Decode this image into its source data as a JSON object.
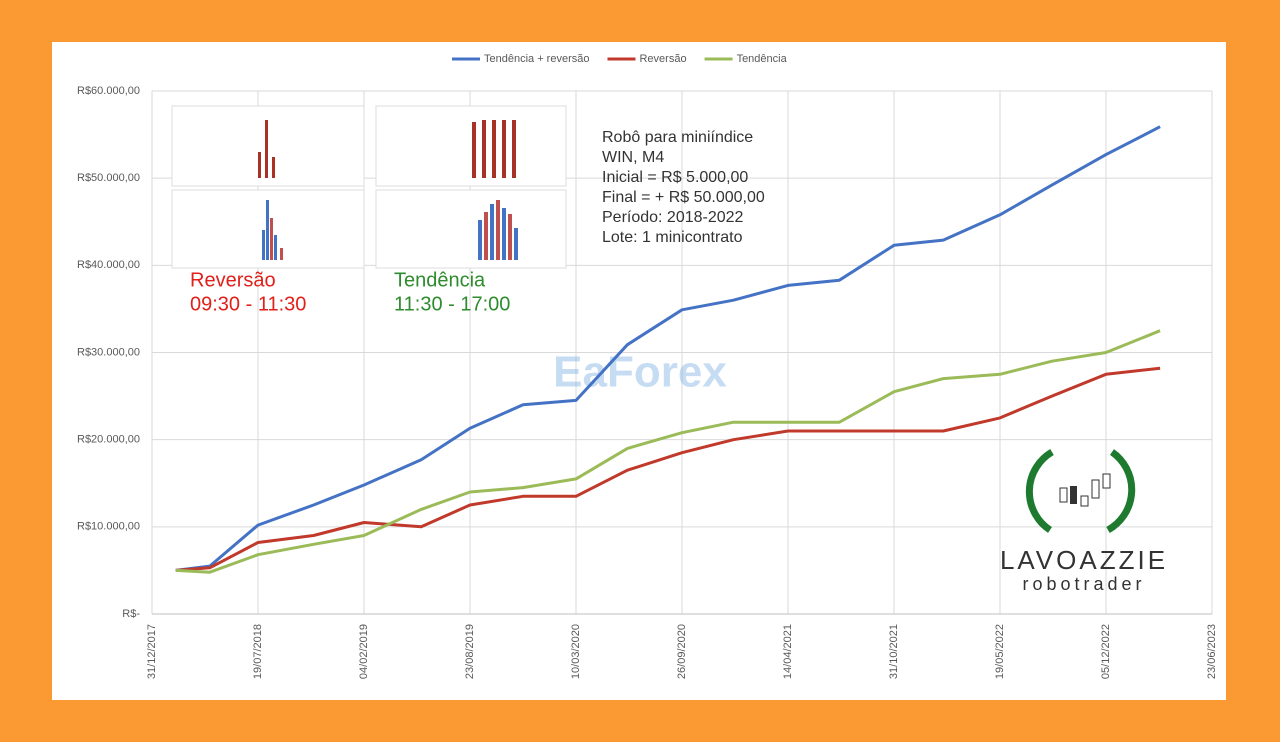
{
  "chart_data": {
    "type": "line",
    "legend_position": "top",
    "grid": true,
    "x": [
      "14/02/2018",
      "19/04/2018",
      "19/07/2018",
      "01/11/2018",
      "04/02/2019",
      "23/05/2019",
      "23/08/2019",
      "01/12/2019",
      "10/03/2020",
      "15/06/2020",
      "26/09/2020",
      "01/01/2021",
      "14/04/2021",
      "20/07/2021",
      "31/10/2021",
      "01/02/2022",
      "19/05/2022",
      "25/08/2022",
      "05/12/2022",
      "17/03/2023"
    ],
    "series": [
      {
        "name": "Tendência + reversão",
        "color": "#4472c4",
        "values": [
          5000,
          5500,
          10200,
          12500,
          14800,
          17700,
          21300,
          24000,
          24500,
          30900,
          34900,
          36000,
          37700,
          38300,
          42300,
          42900,
          45800,
          49200,
          52700,
          55900
        ]
      },
      {
        "name": "Reversão",
        "color": "#c0392b",
        "values": [
          5000,
          5300,
          8200,
          9000,
          10500,
          10000,
          12500,
          13500,
          13500,
          16500,
          18500,
          20000,
          21000,
          21000,
          21000,
          21000,
          22500,
          25000,
          27500,
          28200
        ]
      },
      {
        "name": "Tendência",
        "color": "#9bbb59",
        "values": [
          5000,
          4800,
          6800,
          8000,
          9000,
          12000,
          14000,
          14500,
          15500,
          19000,
          20800,
          22000,
          22000,
          22000,
          25500,
          27000,
          27500,
          29000,
          30000,
          32500
        ]
      }
    ],
    "xlim": [
      "31/12/2017",
      "23/06/2023"
    ],
    "xticks": [
      "31/12/2017",
      "19/07/2018",
      "04/02/2019",
      "23/08/2019",
      "10/03/2020",
      "26/09/2020",
      "14/04/2021",
      "31/10/2021",
      "19/05/2022",
      "05/12/2022",
      "23/06/2023"
    ],
    "ylim": [
      0,
      60000
    ],
    "yticks": [
      {
        "value": 0,
        "label": "R$-"
      },
      {
        "value": 10000,
        "label": "R$10.000,00"
      },
      {
        "value": 20000,
        "label": "R$20.000,00"
      },
      {
        "value": 30000,
        "label": "R$30.000,00"
      },
      {
        "value": 40000,
        "label": "R$40.000,00"
      },
      {
        "value": 50000,
        "label": "R$50.000,00"
      },
      {
        "value": 60000,
        "label": "R$60.000,00"
      }
    ],
    "note_lines": [
      "Robô para miniíndice",
      "WIN, M4",
      "Inicial = R$ 5.000,00",
      "Final = + R$ 50.000,00",
      "Período: 2018-2022",
      "Lote: 1 minicontrato"
    ],
    "reversao": {
      "label": "Reversão",
      "hours": "09:30 - 11:30"
    },
    "tendencia": {
      "label": "Tendência",
      "hours": "11:30 - 17:00"
    },
    "watermark": "EaForex",
    "brand": "LAVOAZZIE",
    "brand_sub": "robotrader"
  }
}
